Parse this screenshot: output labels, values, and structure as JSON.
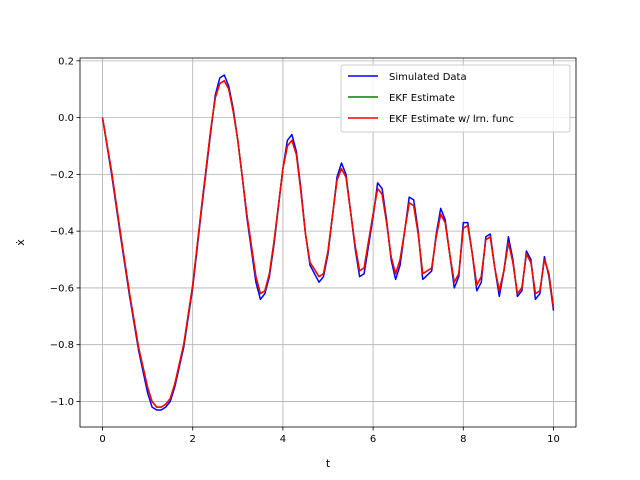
{
  "chart_data": {
    "type": "line",
    "xlabel": "t",
    "ylabel": "ẋ",
    "xlim": [
      -0.5,
      10.5
    ],
    "ylim": [
      -1.09,
      0.21
    ],
    "x_ticks": [
      0,
      2,
      4,
      6,
      8,
      10
    ],
    "x_tick_labels": [
      "0",
      "2",
      "4",
      "6",
      "8",
      "10"
    ],
    "y_ticks": [
      -1.0,
      -0.8,
      -0.6,
      -0.4,
      -0.2,
      0.0,
      0.2
    ],
    "y_tick_labels": [
      "−1.0",
      "−0.8",
      "−0.6",
      "−0.4",
      "−0.2",
      "0.0",
      "0.2"
    ],
    "grid": true,
    "legend_position": "top-right",
    "series": [
      {
        "name": "Simulated Data",
        "color": "#0000ff",
        "x": [
          0,
          0.2,
          0.4,
          0.6,
          0.8,
          1.0,
          1.1,
          1.2,
          1.3,
          1.4,
          1.5,
          1.6,
          1.8,
          2.0,
          2.2,
          2.4,
          2.5,
          2.6,
          2.7,
          2.8,
          2.9,
          3.0,
          3.1,
          3.2,
          3.4,
          3.5,
          3.6,
          3.7,
          3.8,
          4.0,
          4.1,
          4.2,
          4.3,
          4.4,
          4.5,
          4.6,
          4.8,
          4.9,
          5.0,
          5.2,
          5.3,
          5.4,
          5.6,
          5.7,
          5.8,
          6.0,
          6.1,
          6.2,
          6.3,
          6.4,
          6.5,
          6.6,
          6.8,
          6.9,
          7.0,
          7.1,
          7.3,
          7.4,
          7.5,
          7.6,
          7.7,
          7.8,
          7.9,
          8.0,
          8.1,
          8.2,
          8.3,
          8.4,
          8.5,
          8.6,
          8.7,
          8.8,
          8.9,
          9.0,
          9.1,
          9.2,
          9.3,
          9.4,
          9.5,
          9.6,
          9.7,
          9.8,
          9.9,
          10.0
        ],
        "y": [
          0.0,
          -0.2,
          -0.42,
          -0.63,
          -0.82,
          -0.97,
          -1.02,
          -1.03,
          -1.03,
          -1.02,
          -1.0,
          -0.95,
          -0.81,
          -0.6,
          -0.32,
          -0.05,
          0.08,
          0.14,
          0.15,
          0.11,
          0.03,
          -0.08,
          -0.21,
          -0.35,
          -0.58,
          -0.64,
          -0.62,
          -0.56,
          -0.45,
          -0.18,
          -0.08,
          -0.06,
          -0.12,
          -0.25,
          -0.41,
          -0.52,
          -0.58,
          -0.56,
          -0.48,
          -0.21,
          -0.16,
          -0.2,
          -0.46,
          -0.56,
          -0.55,
          -0.35,
          -0.23,
          -0.25,
          -0.36,
          -0.5,
          -0.57,
          -0.52,
          -0.28,
          -0.29,
          -0.4,
          -0.57,
          -0.54,
          -0.41,
          -0.32,
          -0.36,
          -0.48,
          -0.6,
          -0.56,
          -0.37,
          -0.37,
          -0.48,
          -0.61,
          -0.58,
          -0.42,
          -0.41,
          -0.53,
          -0.63,
          -0.54,
          -0.42,
          -0.5,
          -0.63,
          -0.61,
          -0.47,
          -0.5,
          -0.64,
          -0.62,
          -0.49,
          -0.56,
          -0.68
        ]
      },
      {
        "name": "EKF Estimate",
        "color": "#008000",
        "x": [
          0,
          0.2,
          0.4,
          0.6,
          0.8,
          1.0,
          1.1,
          1.2,
          1.3,
          1.4,
          1.5,
          1.6,
          1.8,
          2.0,
          2.2,
          2.4,
          2.5,
          2.6,
          2.7,
          2.8,
          2.9,
          3.0,
          3.1,
          3.2,
          3.4,
          3.5,
          3.6,
          3.7,
          3.8,
          4.0,
          4.1,
          4.2,
          4.3,
          4.4,
          4.5,
          4.6,
          4.8,
          4.9,
          5.0,
          5.2,
          5.3,
          5.4,
          5.6,
          5.7,
          5.8,
          6.0,
          6.1,
          6.2,
          6.3,
          6.4,
          6.5,
          6.6,
          6.8,
          6.9,
          7.0,
          7.1,
          7.3,
          7.4,
          7.5,
          7.6,
          7.7,
          7.8,
          7.9,
          8.0,
          8.1,
          8.2,
          8.3,
          8.4,
          8.5,
          8.6,
          8.7,
          8.8,
          8.9,
          9.0,
          9.1,
          9.2,
          9.3,
          9.4,
          9.5,
          9.6,
          9.7,
          9.8,
          9.9,
          10.0
        ],
        "y": [
          0.0,
          -0.19,
          -0.41,
          -0.62,
          -0.81,
          -0.95,
          -1.0,
          -1.02,
          -1.02,
          -1.01,
          -0.99,
          -0.94,
          -0.8,
          -0.59,
          -0.31,
          -0.04,
          0.07,
          0.12,
          0.13,
          0.1,
          0.02,
          -0.08,
          -0.21,
          -0.34,
          -0.56,
          -0.62,
          -0.61,
          -0.55,
          -0.44,
          -0.18,
          -0.1,
          -0.08,
          -0.13,
          -0.26,
          -0.41,
          -0.51,
          -0.56,
          -0.55,
          -0.47,
          -0.22,
          -0.18,
          -0.21,
          -0.45,
          -0.54,
          -0.53,
          -0.34,
          -0.25,
          -0.27,
          -0.37,
          -0.49,
          -0.55,
          -0.5,
          -0.3,
          -0.31,
          -0.41,
          -0.55,
          -0.53,
          -0.42,
          -0.34,
          -0.37,
          -0.48,
          -0.58,
          -0.55,
          -0.39,
          -0.38,
          -0.48,
          -0.59,
          -0.56,
          -0.43,
          -0.42,
          -0.53,
          -0.61,
          -0.54,
          -0.44,
          -0.51,
          -0.62,
          -0.6,
          -0.48,
          -0.51,
          -0.62,
          -0.61,
          -0.5,
          -0.55,
          -0.67
        ]
      },
      {
        "name": "EKF Estimate w/ lrn. func",
        "color": "#ff0000",
        "x": [
          0,
          0.2,
          0.4,
          0.6,
          0.8,
          1.0,
          1.1,
          1.2,
          1.3,
          1.4,
          1.5,
          1.6,
          1.8,
          2.0,
          2.2,
          2.4,
          2.5,
          2.6,
          2.7,
          2.8,
          2.9,
          3.0,
          3.1,
          3.2,
          3.4,
          3.5,
          3.6,
          3.7,
          3.8,
          4.0,
          4.1,
          4.2,
          4.3,
          4.4,
          4.5,
          4.6,
          4.8,
          4.9,
          5.0,
          5.2,
          5.3,
          5.4,
          5.6,
          5.7,
          5.8,
          6.0,
          6.1,
          6.2,
          6.3,
          6.4,
          6.5,
          6.6,
          6.8,
          6.9,
          7.0,
          7.1,
          7.3,
          7.4,
          7.5,
          7.6,
          7.7,
          7.8,
          7.9,
          8.0,
          8.1,
          8.2,
          8.3,
          8.4,
          8.5,
          8.6,
          8.7,
          8.8,
          8.9,
          9.0,
          9.1,
          9.2,
          9.3,
          9.4,
          9.5,
          9.6,
          9.7,
          9.8,
          9.9,
          10.0
        ],
        "y": [
          0.0,
          -0.19,
          -0.41,
          -0.62,
          -0.81,
          -0.95,
          -1.0,
          -1.02,
          -1.02,
          -1.01,
          -0.99,
          -0.94,
          -0.8,
          -0.59,
          -0.31,
          -0.04,
          0.07,
          0.12,
          0.13,
          0.1,
          0.02,
          -0.08,
          -0.21,
          -0.34,
          -0.56,
          -0.62,
          -0.61,
          -0.55,
          -0.44,
          -0.18,
          -0.1,
          -0.08,
          -0.13,
          -0.26,
          -0.41,
          -0.51,
          -0.56,
          -0.55,
          -0.47,
          -0.22,
          -0.18,
          -0.21,
          -0.45,
          -0.54,
          -0.53,
          -0.34,
          -0.25,
          -0.27,
          -0.37,
          -0.49,
          -0.55,
          -0.5,
          -0.3,
          -0.31,
          -0.41,
          -0.55,
          -0.53,
          -0.42,
          -0.34,
          -0.37,
          -0.48,
          -0.58,
          -0.55,
          -0.39,
          -0.38,
          -0.48,
          -0.59,
          -0.56,
          -0.43,
          -0.42,
          -0.53,
          -0.61,
          -0.54,
          -0.44,
          -0.51,
          -0.62,
          -0.6,
          -0.48,
          -0.51,
          -0.62,
          -0.61,
          -0.5,
          -0.55,
          -0.67
        ]
      }
    ]
  }
}
